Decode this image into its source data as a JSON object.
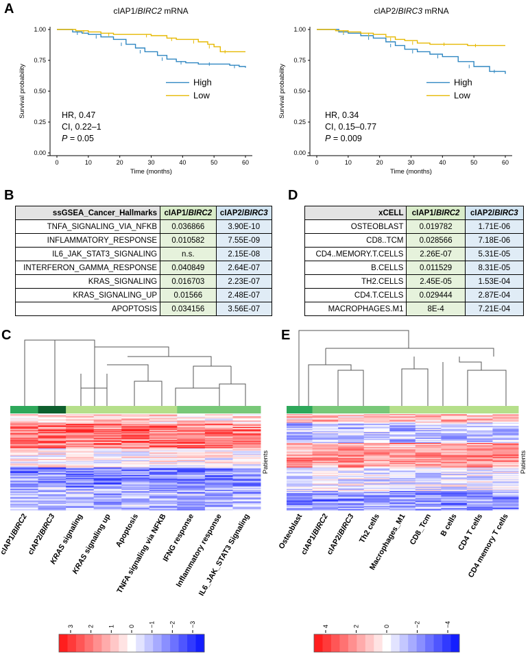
{
  "panels": {
    "A": "A",
    "B": "B",
    "C": "C",
    "D": "D",
    "E": "E"
  },
  "km_left": {
    "title_pre": "cIAP1/",
    "title_gene": "BIRC2",
    "title_post": " mRNA",
    "ylabel": "Survival probability",
    "xlabel": "Time (months)",
    "yticks": [
      "1.00",
      "0.75",
      "0.50",
      "0.25",
      "0.00"
    ],
    "xticks": [
      "0",
      "10",
      "20",
      "30",
      "40",
      "50",
      "60"
    ],
    "legend_high": "High",
    "legend_low": "Low",
    "hr": "HR, 0.47",
    "ci": "CI, 0.22–1",
    "p_label": "P",
    "p_value": " = 0.05",
    "high_color": "#2e86c1",
    "low_color": "#e6b800",
    "chart_data": {
      "type": "line",
      "series": [
        {
          "name": "High",
          "x": [
            0,
            5,
            8,
            10,
            14,
            18,
            22,
            25,
            28,
            32,
            35,
            38,
            41,
            45,
            50,
            55,
            58,
            60
          ],
          "y": [
            1,
            0.98,
            0.97,
            0.96,
            0.94,
            0.92,
            0.88,
            0.85,
            0.82,
            0.79,
            0.76,
            0.74,
            0.73,
            0.72,
            0.72,
            0.71,
            0.7,
            0.69
          ]
        },
        {
          "name": "Low",
          "x": [
            0,
            6,
            10,
            14,
            18,
            25,
            30,
            35,
            38,
            42,
            45,
            48,
            50,
            52,
            55,
            60
          ],
          "y": [
            1,
            0.99,
            0.98,
            0.97,
            0.96,
            0.96,
            0.95,
            0.93,
            0.92,
            0.92,
            0.9,
            0.88,
            0.86,
            0.82,
            0.82,
            0.82
          ]
        }
      ],
      "xlim": [
        0,
        60
      ],
      "ylim": [
        0,
        1
      ]
    }
  },
  "km_right": {
    "title_pre": "cIAP2/",
    "title_gene": "BIRC3",
    "title_post": " mRNA",
    "ylabel": "Survival probability",
    "xlabel": "Time (months)",
    "yticks": [
      "1.00",
      "0.75",
      "0.50",
      "0.25",
      "0.00"
    ],
    "xticks": [
      "0",
      "10",
      "20",
      "30",
      "40",
      "50",
      "60"
    ],
    "legend_high": "High",
    "legend_low": "Low",
    "hr": "HR, 0.34",
    "ci": "CI, 0.15–0.77",
    "p_label": "P",
    "p_value": " = 0.009",
    "chart_data": {
      "type": "line",
      "series": [
        {
          "name": "High",
          "x": [
            0,
            7,
            10,
            14,
            18,
            22,
            25,
            28,
            32,
            36,
            40,
            45,
            50,
            55,
            58,
            60
          ],
          "y": [
            1,
            0.98,
            0.97,
            0.95,
            0.93,
            0.9,
            0.87,
            0.84,
            0.82,
            0.8,
            0.78,
            0.74,
            0.7,
            0.66,
            0.66,
            0.64
          ]
        },
        {
          "name": "Low",
          "x": [
            0,
            6,
            10,
            14,
            18,
            22,
            25,
            28,
            32,
            36,
            42,
            48,
            52,
            60
          ],
          "y": [
            1,
            0.99,
            0.98,
            0.97,
            0.96,
            0.94,
            0.92,
            0.91,
            0.89,
            0.88,
            0.88,
            0.87,
            0.87,
            0.87
          ]
        }
      ],
      "xlim": [
        0,
        60
      ],
      "ylim": [
        0,
        1
      ]
    }
  },
  "table_b": {
    "header": [
      "ssGSEA_Cancer_Hallmarks",
      "cIAP1/",
      "BIRC2",
      "cIAP2/",
      "BIRC3"
    ],
    "rows": [
      [
        "TNFA_SIGNALING_VIA_NFKB",
        "0.036866",
        "3.90E-10"
      ],
      [
        "INFLAMMATORY_RESPONSE",
        "0.010582",
        "7.55E-09"
      ],
      [
        "IL6_JAK_STAT3_SIGNALING",
        "n.s.",
        "2.15E-08"
      ],
      [
        "INTERFERON_GAMMA_RESPONSE",
        "0.040849",
        "2.64E-07"
      ],
      [
        "KRAS_SIGNALING",
        "0.016703",
        "2.23E-07"
      ],
      [
        "KRAS_SIGNALING_UP",
        "0.01566",
        "2.48E-07"
      ],
      [
        "APOPTOSIS",
        "0.034156",
        "3.56E-07"
      ]
    ]
  },
  "table_d": {
    "header": [
      "xCELL",
      "cIAP1/",
      "BIRC2",
      "cIAP2/",
      "BIRC3"
    ],
    "rows": [
      [
        "OSTEOBLAST",
        "0.019782",
        "1.71E-06"
      ],
      [
        "CD8..TCM",
        "0.028566",
        "7.18E-06"
      ],
      [
        "CD4..MEMORY.T.CELLS",
        "2.26E-07",
        "5.31E-05"
      ],
      [
        "B.CELLS",
        "0.011529",
        "8.31E-05"
      ],
      [
        "TH2.CELLS",
        "2.45E-05",
        "1.53E-04"
      ],
      [
        "CD4.T.CELLS",
        "0.029444",
        "2.87E-04"
      ],
      [
        "MACROPHAGES.M1",
        "8E-4",
        "7.21E-04"
      ]
    ]
  },
  "heatmap_c": {
    "side_label": "Patients",
    "columns": [
      {
        "pre": "cIAP1/",
        "it": "BIRC2",
        "post": ""
      },
      {
        "pre": "cIAP2/",
        "it": "BIRC3",
        "post": ""
      },
      {
        "pre": "",
        "it": "KRAS",
        "post": " signaling"
      },
      {
        "pre": "",
        "it": "KRAS",
        "post": " signaling up"
      },
      {
        "pre": "Apoptosis",
        "it": "",
        "post": ""
      },
      {
        "pre": "TNFA signaling via NFKB",
        "it": "",
        "post": ""
      },
      {
        "pre": "IFNG response",
        "it": "",
        "post": ""
      },
      {
        "pre": "Inflammatory response",
        "it": "",
        "post": ""
      },
      {
        "pre": "IL6_JAK_STAT3 Signaling",
        "it": "",
        "post": ""
      }
    ],
    "group_colors": [
      "#2ea85a",
      "#0f5f2e",
      "#b5df8a",
      "#b5df8a",
      "#b5df8a",
      "#b5df8a",
      "#78c878",
      "#78c878",
      "#78c878"
    ],
    "scale_ticks": [
      "3",
      "2",
      "1",
      "0",
      "−1",
      "−2",
      "−3"
    ]
  },
  "heatmap_e": {
    "side_label": "Patients",
    "columns": [
      {
        "pre": "Osteoblast",
        "it": "",
        "post": ""
      },
      {
        "pre": "cIAP1/",
        "it": "BIRC2",
        "post": ""
      },
      {
        "pre": "cIAP2/",
        "it": "BIRC3",
        "post": ""
      },
      {
        "pre": "Th2 cells",
        "it": "",
        "post": ""
      },
      {
        "pre": "Macrophages_M1",
        "it": "",
        "post": ""
      },
      {
        "pre": "CD8_Tcm",
        "it": "",
        "post": ""
      },
      {
        "pre": "B cells",
        "it": "",
        "post": ""
      },
      {
        "pre": "CD4 T cells",
        "it": "",
        "post": ""
      },
      {
        "pre": "CD4 memory T cells",
        "it": "",
        "post": ""
      }
    ],
    "group_colors": [
      "#2ea85a",
      "#78c878",
      "#78c878",
      "#78c878",
      "#b5df8a",
      "#b5df8a",
      "#b5df8a",
      "#b5df8a",
      "#b5df8a"
    ],
    "scale_ticks": [
      "4",
      "2",
      "0",
      "−2",
      "−4"
    ]
  }
}
